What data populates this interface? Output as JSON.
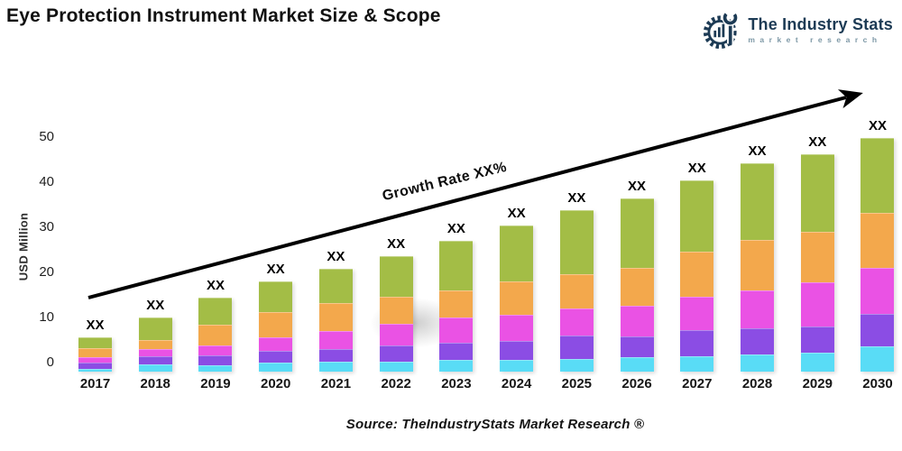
{
  "header": {
    "title": "Eye Protection Instrument Market Size & Scope",
    "logo": {
      "name": "The Industry Stats",
      "subtitle": "market research",
      "brand_color": "#1d3b55",
      "subtitle_color": "#7d98a6"
    }
  },
  "chart_data": {
    "type": "bar",
    "stacked": true,
    "title": "Eye Protection Instrument Market Size & Scope",
    "xlabel": "",
    "ylabel": "USD Million",
    "yticks": [
      0,
      10,
      20,
      30,
      40,
      50
    ],
    "ylim": [
      0,
      55
    ],
    "grid": false,
    "legend": "none",
    "bar_value_label": "XX",
    "annotation": "Growth Rate XX%",
    "arrow_color": "#000000",
    "categories": [
      "2017",
      "2018",
      "2019",
      "2020",
      "2021",
      "2022",
      "2023",
      "2024",
      "2025",
      "2026",
      "2027",
      "2028",
      "2029",
      "2030"
    ],
    "series": [
      {
        "name": "segment-cyan",
        "color": "#59dcf6",
        "values": [
          0.7,
          1.7,
          1.4,
          2.1,
          2.3,
          2.3,
          2.6,
          2.6,
          2.9,
          3.3,
          3.5,
          3.9,
          4.3,
          5.6
        ]
      },
      {
        "name": "segment-purple",
        "color": "#8b4de4",
        "values": [
          1.3,
          1.7,
          2.2,
          2.5,
          2.8,
          3.5,
          3.9,
          4.3,
          5.1,
          4.5,
          5.7,
          5.7,
          5.8,
          7.2
        ]
      },
      {
        "name": "segment-magenta",
        "color": "#ea52e4",
        "values": [
          1.3,
          1.7,
          2.3,
          3.1,
          3.9,
          4.9,
          5.5,
          5.8,
          6.0,
          6.8,
          7.5,
          8.5,
          9.7,
          10.2
        ]
      },
      {
        "name": "segment-orange",
        "color": "#f3a84c",
        "values": [
          1.9,
          2.0,
          4.5,
          5.5,
          6.2,
          5.9,
          6.1,
          7.3,
          7.7,
          8.5,
          9.9,
          11.2,
          11.3,
          12.3
        ]
      },
      {
        "name": "segment-green",
        "color": "#a3bd46",
        "values": [
          2.5,
          5.0,
          6.1,
          6.9,
          7.7,
          9.0,
          10.9,
          12.4,
          14.2,
          15.3,
          15.9,
          16.9,
          17.1,
          16.5
        ]
      }
    ],
    "totals_estimated": [
      7.7,
      12.1,
      16.5,
      20.1,
      22.9,
      25.6,
      29.0,
      32.4,
      35.9,
      38.4,
      42.5,
      46.2,
      48.2,
      51.8
    ]
  },
  "footer": {
    "source": "Source: TheIndustryStats Market Research ®"
  }
}
